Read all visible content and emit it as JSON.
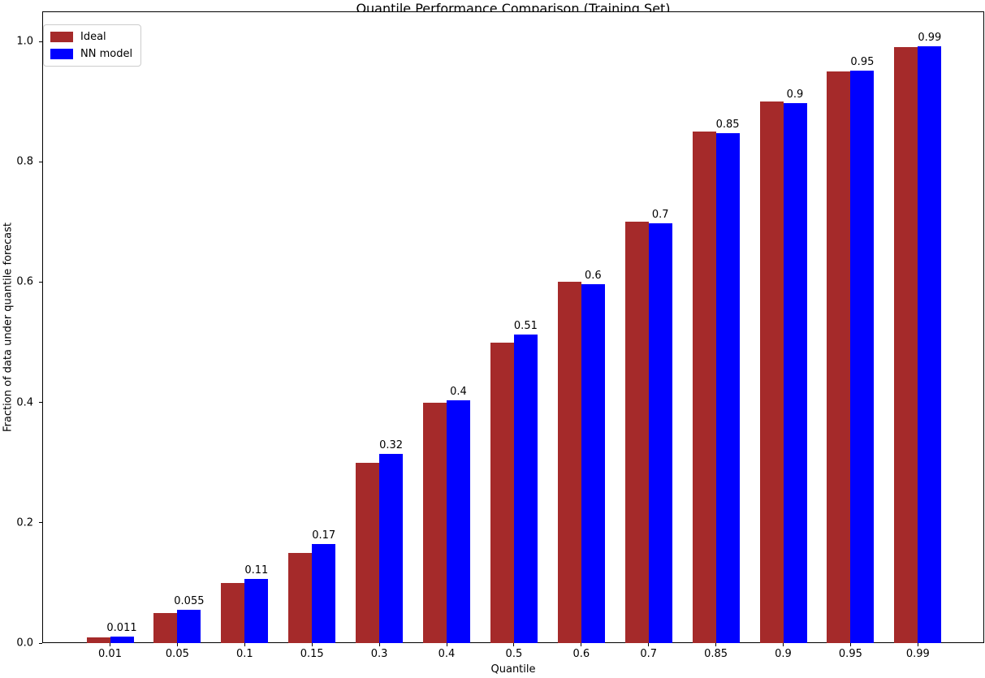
{
  "chart_data": {
    "type": "bar",
    "title": "Quantile Performance Comparison (Training Set)",
    "xlabel": "Quantile",
    "ylabel": "Fraction of data under quantile forecast",
    "categories": [
      "0.01",
      "0.05",
      "0.1",
      "0.15",
      "0.3",
      "0.4",
      "0.5",
      "0.6",
      "0.7",
      "0.85",
      "0.9",
      "0.95",
      "0.99"
    ],
    "series": [
      {
        "name": "Ideal",
        "color": "#a52a2a",
        "values": [
          0.01,
          0.05,
          0.1,
          0.15,
          0.3,
          0.4,
          0.5,
          0.6,
          0.7,
          0.85,
          0.9,
          0.95,
          0.99
        ]
      },
      {
        "name": "NN model",
        "color": "#0000ff",
        "values": [
          0.011,
          0.055,
          0.107,
          0.165,
          0.315,
          0.403,
          0.513,
          0.597,
          0.698,
          0.847,
          0.897,
          0.951,
          0.992
        ],
        "bar_labels": [
          "0.011",
          "0.055",
          "0.11",
          "0.17",
          "0.32",
          "0.4",
          "0.51",
          "0.6",
          "0.7",
          "0.85",
          "0.9",
          "0.95",
          "0.99"
        ]
      }
    ],
    "ylim": [
      0.0,
      1.05
    ],
    "yticks": [
      0.0,
      0.2,
      0.4,
      0.6,
      0.8,
      1.0
    ],
    "ytick_labels": [
      "0.0",
      "0.2",
      "0.4",
      "0.6",
      "0.8",
      "1.0"
    ],
    "legend_position": "upper left",
    "grid": false
  }
}
